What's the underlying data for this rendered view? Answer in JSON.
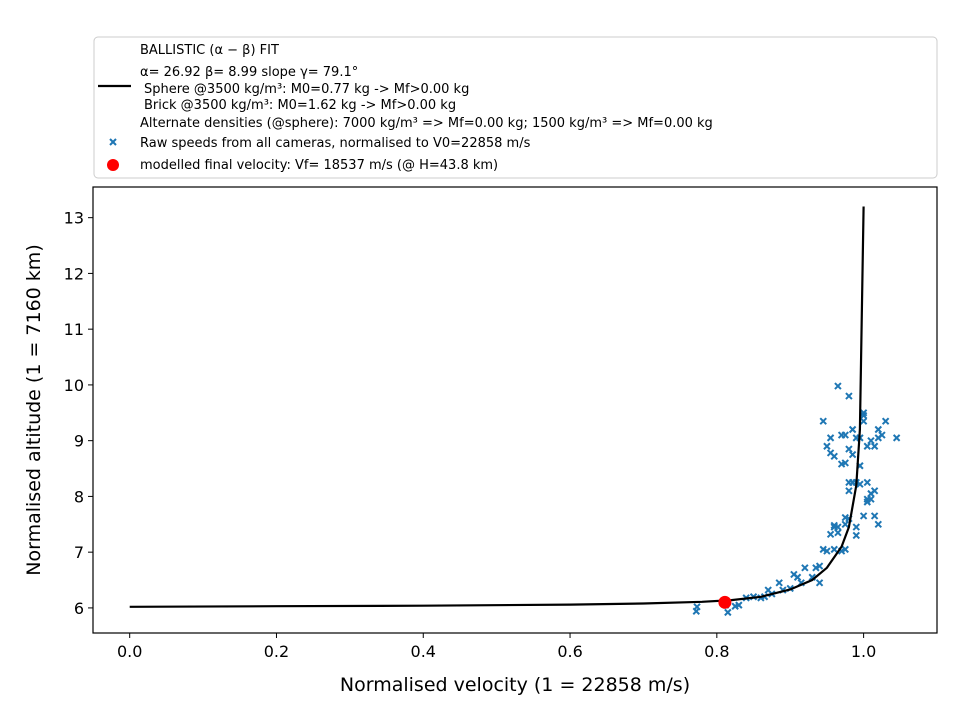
{
  "chart_data": {
    "type": "scatter",
    "xlabel": "Normalised velocity (1 = 22858 m/s)",
    "ylabel": "Normalised altitude (1 = 7160 km)",
    "xlim": [
      -0.05,
      1.1
    ],
    "ylim": [
      5.55,
      13.55
    ],
    "xticks": [
      "0.0",
      "0.2",
      "0.4",
      "0.6",
      "0.8",
      "1.0"
    ],
    "yticks": [
      "6",
      "7",
      "8",
      "9",
      "10",
      "11",
      "12",
      "13"
    ],
    "grid": false,
    "legend": {
      "placement": "top (outside plot)",
      "fit_title": "BALLISTIC (α − β) FIT",
      "fit_params": "α= 26.92     β= 8.99     slope γ= 79.1°",
      "sphere": "Sphere @3500 kg/m³: M0=0.77 kg -> Mf>0.00 kg",
      "brick": "Brick @3500 kg/m³: M0=1.62 kg -> Mf>0.00 kg",
      "alternate": "Alternate densities (@sphere): 7000 kg/m³ => Mf=0.00 kg; 1500 kg/m³ => Mf=0.00 kg",
      "raw": "Raw speeds from all cameras, normalised to V0=22858 m/s",
      "final": "modelled final velocity: Vf= 18537 m/s (@ H=43.8 km)"
    },
    "colors": {
      "fit": "#000000",
      "raw": "#1f77b4",
      "final": "#ff0000"
    },
    "fit_curve": {
      "x": [
        0.0,
        0.2,
        0.4,
        0.6,
        0.7,
        0.78,
        0.82,
        0.86,
        0.9,
        0.93,
        0.95,
        0.97,
        0.98,
        0.99,
        0.995,
        1.0
      ],
      "y": [
        6.02,
        6.03,
        6.04,
        6.06,
        6.08,
        6.11,
        6.14,
        6.2,
        6.33,
        6.5,
        6.72,
        7.1,
        7.45,
        8.2,
        9.2,
        13.2
      ]
    },
    "final_point": {
      "x": 0.811,
      "y": 6.1
    },
    "raw_points": {
      "x": [
        0.772,
        0.773,
        0.812,
        0.815,
        0.825,
        0.83,
        0.84,
        0.85,
        0.86,
        0.865,
        0.87,
        0.875,
        0.885,
        0.89,
        0.9,
        0.905,
        0.91,
        0.915,
        0.92,
        0.93,
        0.935,
        0.94,
        0.94,
        0.945,
        0.95,
        0.955,
        0.96,
        0.96,
        0.965,
        0.97,
        0.975,
        0.975,
        0.98,
        0.98,
        0.985,
        0.99,
        0.99,
        0.995,
        1.0,
        1.005,
        1.01,
        1.015,
        1.02,
        1.01,
        1.005,
        0.955,
        0.96,
        0.97,
        0.975,
        0.98,
        0.985,
        0.99,
        0.995,
        1.0,
        1.005,
        1.01,
        1.015,
        1.02,
        1.025,
        1.03,
        1.045,
        0.945,
        0.95,
        0.955,
        0.965,
        0.97,
        0.975,
        0.98,
        0.985,
        0.995,
        1.0,
        1.0,
        0.96,
        0.965,
        0.975,
        0.98,
        0.99,
        1.005,
        1.015,
        1.02
      ],
      "y": [
        5.94,
        6.02,
        6.05,
        5.92,
        6.03,
        6.05,
        6.18,
        6.2,
        6.18,
        6.2,
        6.32,
        6.25,
        6.45,
        6.32,
        6.35,
        6.6,
        6.55,
        6.45,
        6.72,
        6.55,
        6.72,
        6.45,
        6.75,
        7.05,
        7.02,
        7.32,
        7.48,
        7.05,
        7.35,
        7.02,
        7.05,
        7.5,
        7.6,
        8.1,
        8.25,
        7.45,
        8.25,
        8.22,
        7.65,
        7.95,
        8.05,
        8.1,
        7.5,
        7.95,
        8.25,
        8.78,
        8.72,
        8.58,
        8.6,
        8.85,
        8.75,
        9.05,
        8.55,
        9.35,
        8.9,
        9.0,
        8.9,
        9.2,
        9.1,
        9.35,
        9.05,
        9.35,
        8.9,
        9.05,
        9.98,
        9.1,
        9.1,
        9.8,
        9.2,
        9.05,
        9.45,
        9.5,
        7.45,
        7.45,
        7.62,
        8.25,
        7.3,
        7.9,
        7.65,
        9.05
      ]
    }
  }
}
